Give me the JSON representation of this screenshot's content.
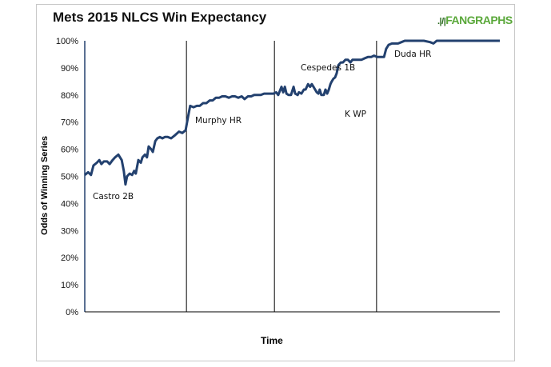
{
  "chart_data": {
    "type": "line",
    "title": "Mets 2015 NLCS Win Expectancy",
    "source_logo": "FANGRAPHS",
    "xlabel": "Time",
    "ylabel": "Odds of Winning Series",
    "ylim": [
      0,
      100
    ],
    "xlim": [
      0,
      100
    ],
    "yticks": [
      "0%",
      "10%",
      "20%",
      "30%",
      "40%",
      "50%",
      "60%",
      "70%",
      "80%",
      "90%",
      "100%"
    ],
    "game_dividers": [
      24.5,
      45.7,
      70.3
    ],
    "series": [
      {
        "name": "Mets win expectancy",
        "color": "#23416f",
        "x": [
          0,
          0.8,
          1.5,
          2.1,
          2.9,
          3.5,
          4.0,
          4.6,
          5.4,
          6.0,
          6.7,
          7.3,
          8.1,
          8.9,
          9.4,
          9.8,
          10.2,
          10.8,
          11.4,
          11.9,
          12.3,
          12.9,
          13.5,
          13.9,
          14.5,
          15.0,
          15.4,
          16.0,
          16.4,
          17.0,
          17.5,
          18.1,
          18.7,
          19.3,
          20.0,
          20.8,
          21.6,
          22.7,
          23.5,
          24.3,
          24.9,
          25.4,
          26.2,
          27.0,
          27.7,
          28.5,
          29.3,
          30.1,
          30.8,
          31.6,
          32.4,
          33.1,
          33.9,
          34.7,
          35.5,
          36.2,
          37.0,
          37.8,
          38.5,
          39.3,
          40.1,
          40.8,
          41.6,
          42.4,
          43.2,
          43.9,
          44.7,
          45.5,
          46.1,
          46.6,
          47.4,
          47.8,
          48.2,
          48.6,
          49.1,
          49.7,
          50.3,
          50.7,
          51.3,
          51.6,
          52.2,
          52.8,
          53.2,
          53.8,
          54.3,
          54.7,
          55.1,
          55.5,
          55.9,
          56.3,
          56.6,
          57.0,
          57.6,
          58.0,
          58.4,
          58.8,
          59.2,
          59.5,
          59.9,
          60.3,
          60.7,
          61.1,
          61.7,
          62.2,
          62.8,
          63.4,
          64.0,
          64.5,
          65.1,
          65.9,
          66.7,
          67.4,
          68.2,
          69.0,
          69.7,
          70.5,
          71.3,
          72.1,
          72.6,
          73.2,
          74.0,
          74.8,
          75.5,
          76.3,
          77.1,
          77.8,
          79.8,
          81.7,
          83.2,
          84.0,
          84.8,
          87.5,
          91.3,
          95.2,
          100
        ],
        "y": [
          50.5,
          51.5,
          50.5,
          54,
          55,
          56,
          54.5,
          55.5,
          55.5,
          54.5,
          56,
          57,
          58,
          56,
          52,
          47,
          50,
          51,
          50.5,
          52,
          51,
          56,
          55,
          57,
          58,
          57,
          61,
          60,
          59,
          63,
          64,
          64.5,
          64,
          64.5,
          64.5,
          64,
          65,
          66.5,
          66,
          67,
          72,
          76,
          75.5,
          76,
          76,
          77,
          77,
          78,
          78,
          79,
          79,
          79.5,
          79.5,
          79,
          79.5,
          79.5,
          79,
          79.5,
          78.5,
          79.5,
          79.5,
          80,
          80,
          80,
          80.5,
          80.5,
          80.5,
          80.5,
          81,
          80,
          83,
          81,
          83,
          80.5,
          80,
          80,
          83,
          80.5,
          80,
          81,
          80.5,
          82,
          82,
          84,
          83,
          84,
          83,
          82,
          81,
          80.5,
          82,
          80,
          80,
          82,
          80.5,
          82,
          84,
          85,
          86,
          86.5,
          88,
          91,
          92,
          92,
          93,
          93,
          92,
          93,
          93,
          93,
          93,
          93.5,
          94,
          94,
          94.5,
          94,
          94,
          94,
          97,
          98.5,
          99,
          99,
          99,
          99.5,
          100,
          100,
          100,
          100,
          99.5,
          99,
          100,
          100,
          100,
          100,
          100
        ]
      }
    ],
    "annotations": [
      "Castro 2B",
      "Murphy HR",
      "Cespedes 1B",
      "K WP",
      "Duda HR"
    ]
  }
}
